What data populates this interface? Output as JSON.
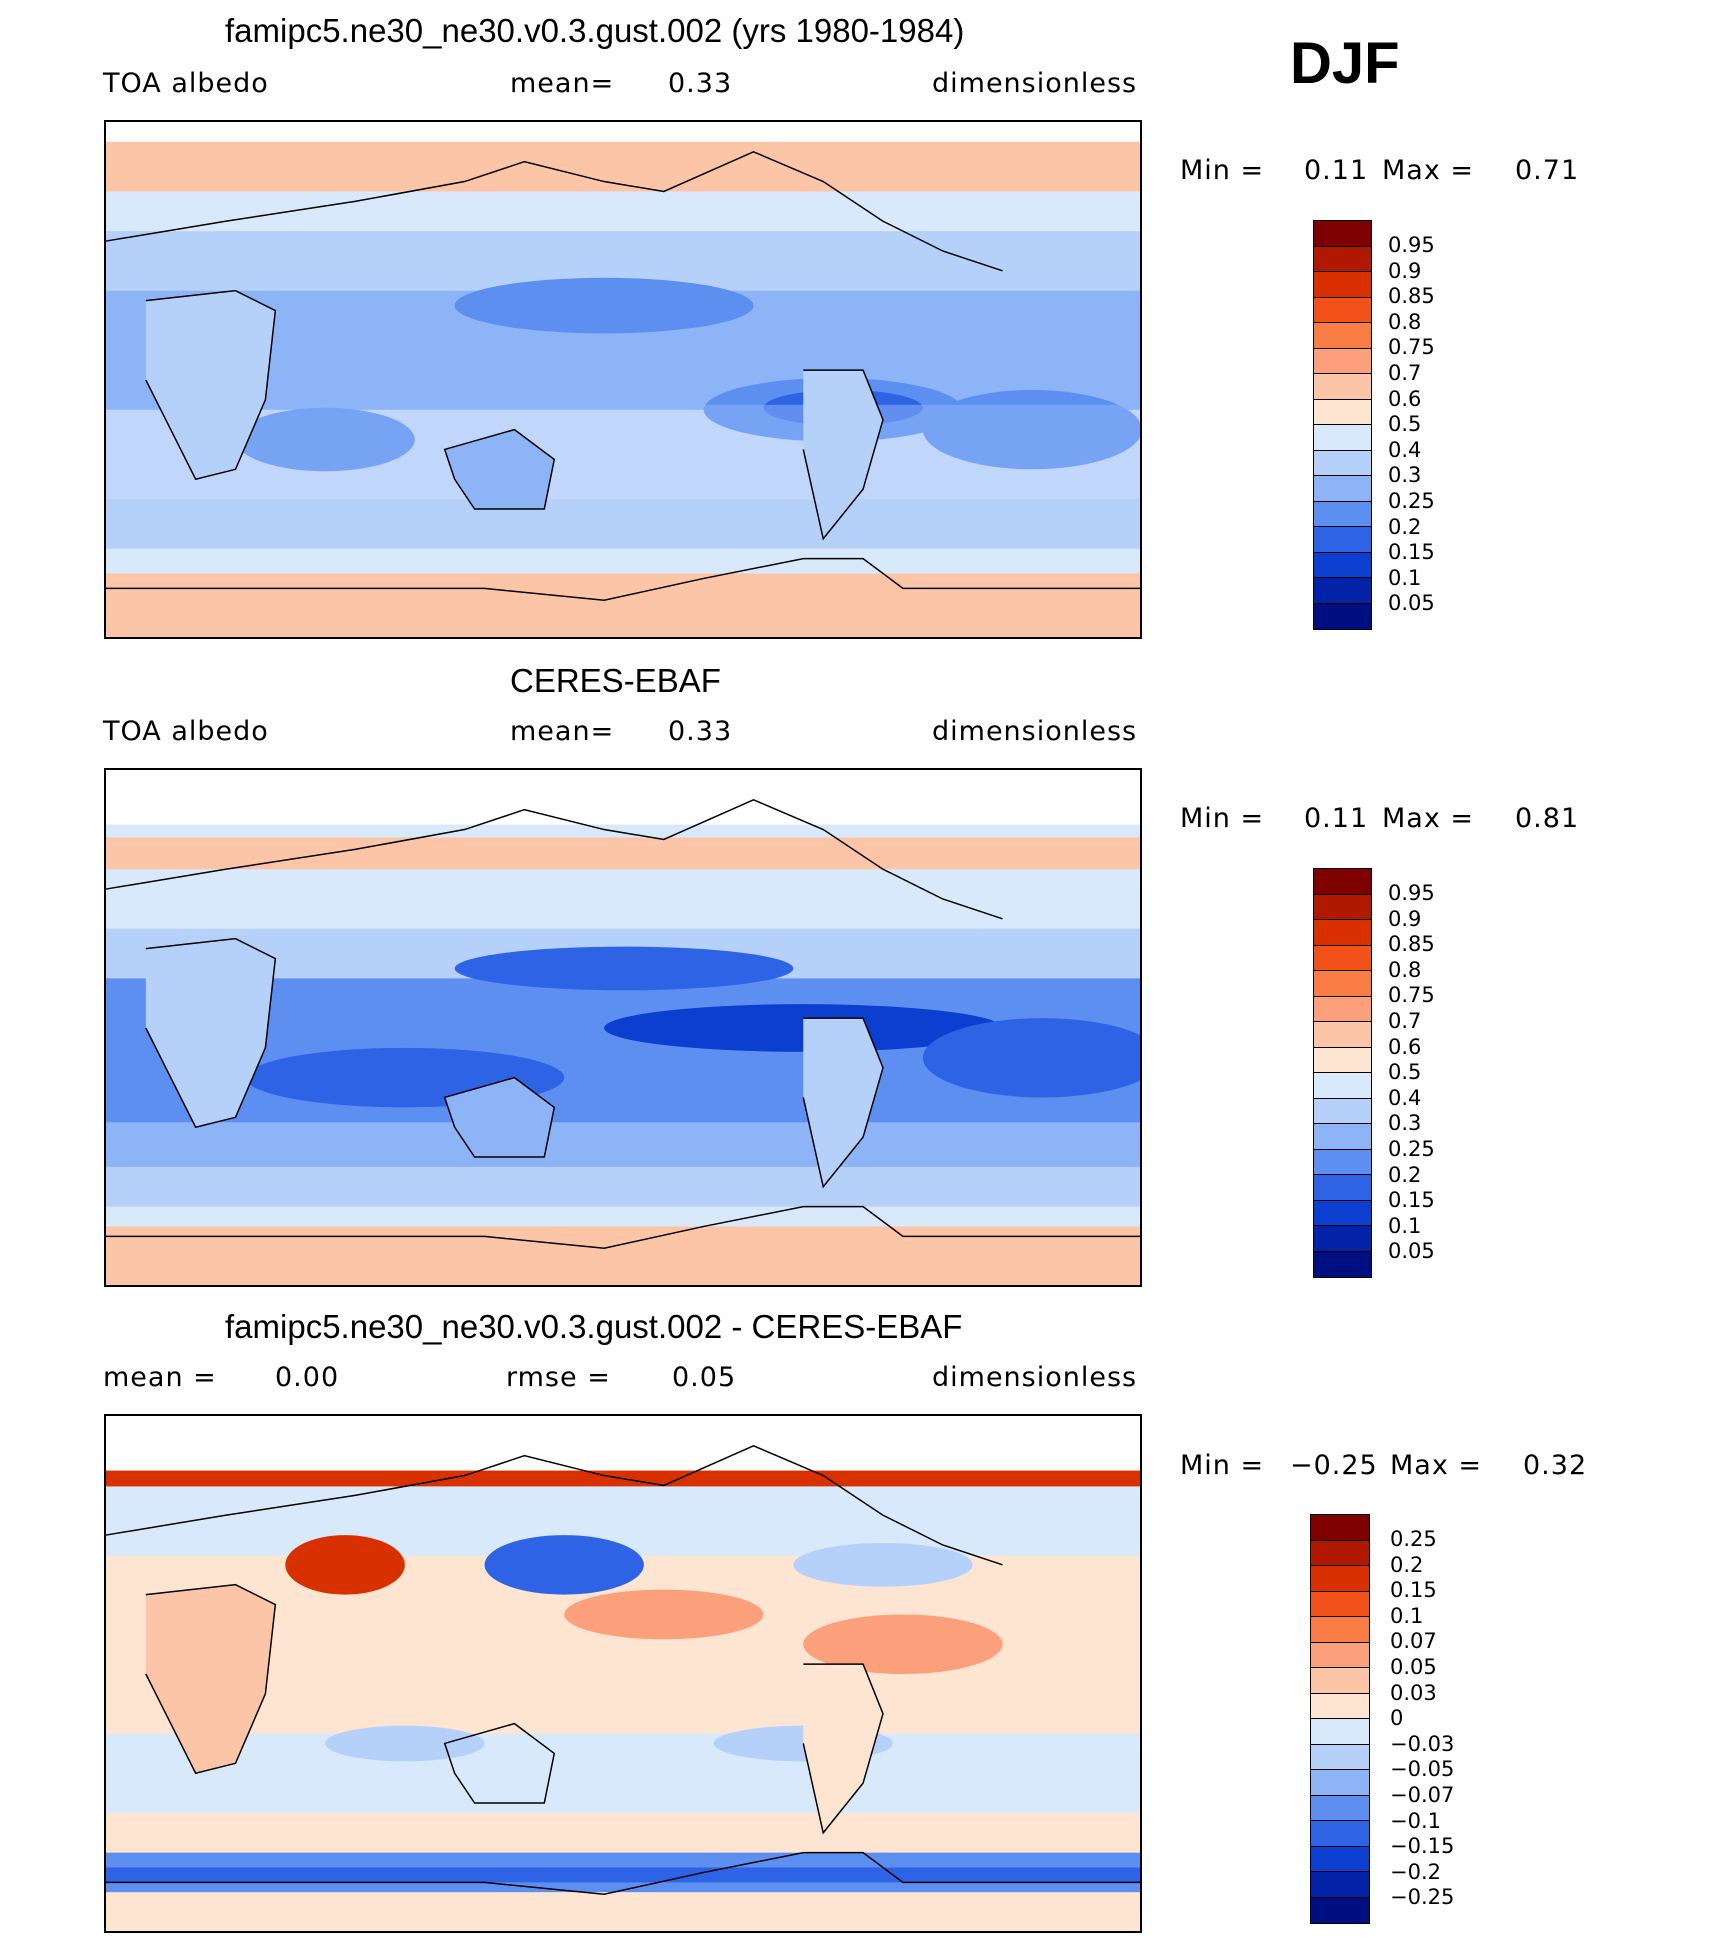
{
  "season": "DJF",
  "panels": [
    {
      "title": "famipc5.ne30_ne30.v0.3.gust.002 (yrs 1980-1984)",
      "left_label": "TOA albedo",
      "stat1_label": "mean=",
      "stat1_value": "0.33",
      "units": "dimensionless",
      "min_label": "Min =",
      "min_value": "0.11",
      "max_label": "Max =",
      "max_value": "0.71",
      "colorbar_labels": [
        "0.95",
        "0.9",
        "0.85",
        "0.8",
        "0.75",
        "0.7",
        "0.6",
        "0.5",
        "0.4",
        "0.3",
        "0.25",
        "0.2",
        "0.15",
        "0.1",
        "0.05"
      ],
      "colorbar_colors": [
        "#7f0000",
        "#b01800",
        "#d93000",
        "#f2511a",
        "#f97c45",
        "#fba07a",
        "#fdc5a8",
        "#fde5d2",
        "#d8e9fb",
        "#b5d1fa",
        "#8cb4f7",
        "#5c8ff0",
        "#2f63e5",
        "#0c3ecf",
        "#0222a8",
        "#000f80"
      ]
    },
    {
      "title": "CERES-EBAF",
      "left_label": "TOA albedo",
      "stat1_label": "mean=",
      "stat1_value": "0.33",
      "units": "dimensionless",
      "min_label": "Min =",
      "min_value": "0.11",
      "max_label": "Max =",
      "max_value": "0.81",
      "colorbar_labels": [
        "0.95",
        "0.9",
        "0.85",
        "0.8",
        "0.75",
        "0.7",
        "0.6",
        "0.5",
        "0.4",
        "0.3",
        "0.25",
        "0.2",
        "0.15",
        "0.1",
        "0.05"
      ],
      "colorbar_colors": [
        "#7f0000",
        "#b01800",
        "#d93000",
        "#f2511a",
        "#f97c45",
        "#fba07a",
        "#fdc5a8",
        "#fde5d2",
        "#d8e9fb",
        "#b5d1fa",
        "#8cb4f7",
        "#5c8ff0",
        "#2f63e5",
        "#0c3ecf",
        "#0222a8",
        "#000f80"
      ]
    },
    {
      "title": "famipc5.ne30_ne30.v0.3.gust.002 - CERES-EBAF",
      "left_label": "mean =",
      "left_value": "0.00",
      "stat1_label": "rmse =",
      "stat1_value": "0.05",
      "units": "dimensionless",
      "min_label": "Min =",
      "min_value": "−0.25",
      "max_label": "Max =",
      "max_value": "0.32",
      "colorbar_labels": [
        "0.25",
        "0.2",
        "0.15",
        "0.1",
        "0.07",
        "0.05",
        "0.03",
        "0",
        "−0.03",
        "−0.05",
        "−0.07",
        "−0.1",
        "−0.15",
        "−0.2",
        "−0.25"
      ],
      "colorbar_colors": [
        "#7f0000",
        "#b01800",
        "#d93000",
        "#f2511a",
        "#f97c45",
        "#fba07a",
        "#fdc5a8",
        "#fde5d2",
        "#d8e9fb",
        "#b5d1fa",
        "#8cb4f7",
        "#5c8ff0",
        "#2f63e5",
        "#0c3ecf",
        "#0222a8",
        "#000f80"
      ]
    }
  ]
}
